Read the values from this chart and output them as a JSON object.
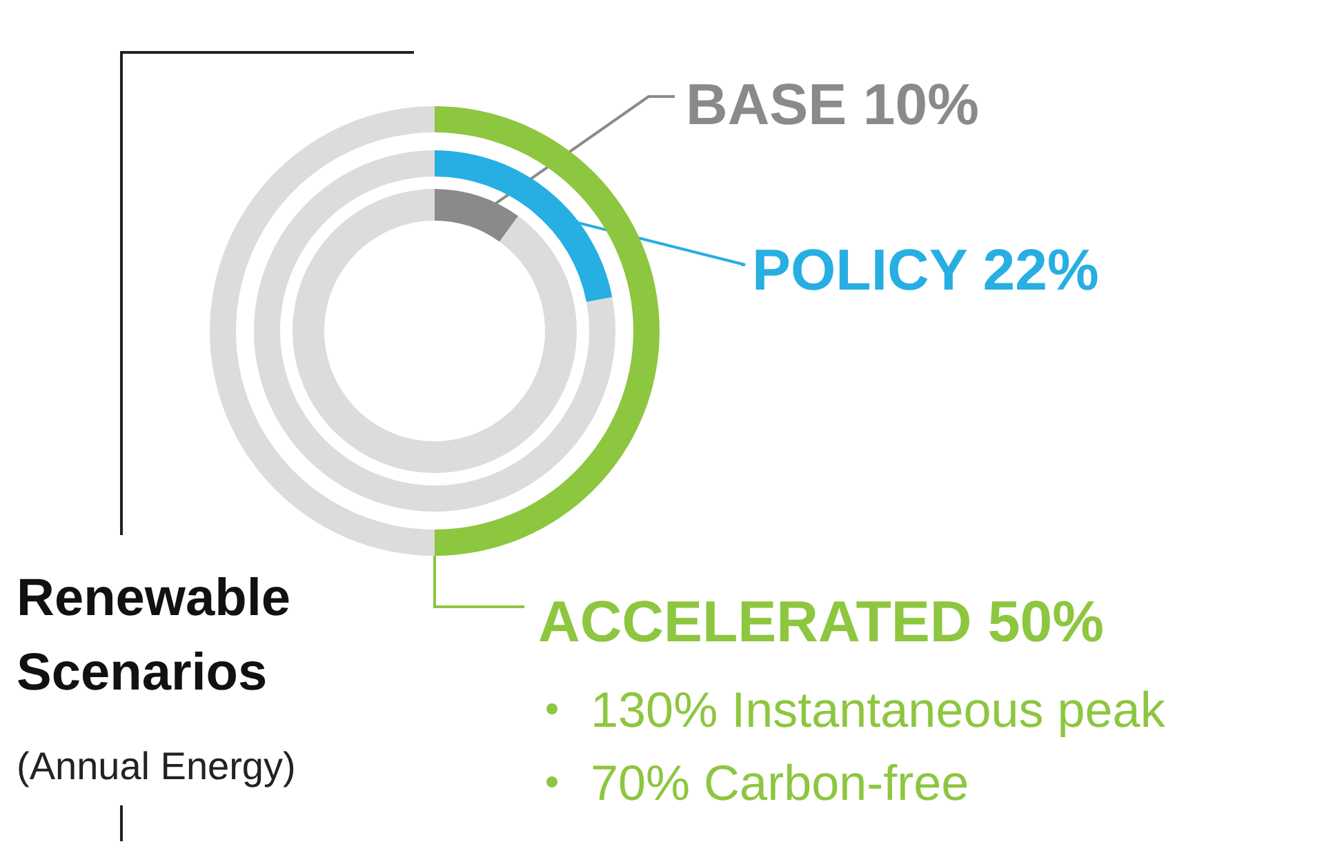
{
  "chart_data": {
    "type": "donut",
    "title": "Renewable Scenarios",
    "subtitle": "(Annual Energy)",
    "categories": [
      null,
      null
    ],
    "series": [
      {
        "name": "BASE 10%",
        "colors": [
          "#8a8a8a",
          "#dcdcdc"
        ],
        "values": [
          10,
          90
        ]
      },
      {
        "name": "POLICY 22%",
        "colors": [
          "#27aee3",
          "#dcdcdc"
        ],
        "values": [
          22,
          78
        ]
      },
      {
        "name": "ACCELERATED 50%",
        "colors": [
          "#8dc63f",
          "#dcdcdc"
        ],
        "values": [
          50,
          50
        ]
      }
    ],
    "legend": "right",
    "annotations": [
      "130% Instantaneous peak",
      "70% Carbon-free"
    ]
  }
}
